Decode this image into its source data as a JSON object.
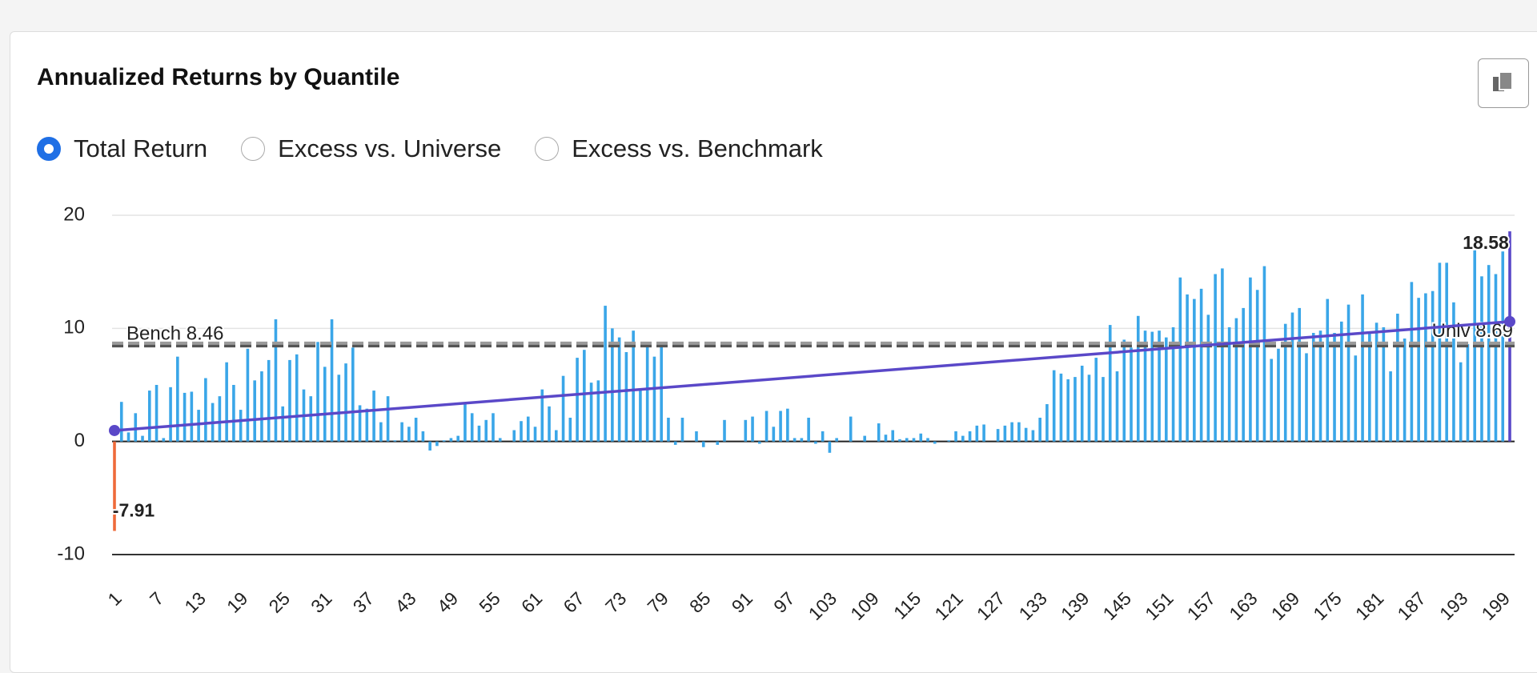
{
  "header": {
    "title": "Annualized Returns by Quantile"
  },
  "options": [
    "Total Return",
    "Excess vs. Universe",
    "Excess vs. Benchmark"
  ],
  "selected": 0,
  "chart_data": {
    "type": "bar",
    "categories": [
      "1",
      null,
      null,
      null,
      null,
      null,
      "7",
      null,
      null,
      null,
      null,
      null,
      "13",
      null,
      null,
      null,
      null,
      null,
      "19",
      null,
      null,
      null,
      null,
      null,
      "25",
      null,
      null,
      null,
      null,
      null,
      "31",
      null,
      null,
      null,
      null,
      null,
      "37",
      null,
      null,
      null,
      null,
      null,
      "43",
      null,
      null,
      null,
      null,
      null,
      "49",
      null,
      null,
      null,
      null,
      null,
      "55",
      null,
      null,
      null,
      null,
      null,
      "61",
      null,
      null,
      null,
      null,
      null,
      "67",
      null,
      null,
      null,
      null,
      null,
      "73",
      null,
      null,
      null,
      null,
      null,
      "79",
      null,
      null,
      null,
      null,
      null,
      "85",
      null,
      null,
      null,
      null,
      null,
      "91",
      null,
      null,
      null,
      null,
      null,
      "97",
      null,
      null,
      null,
      null,
      null,
      "103",
      null,
      null,
      null,
      null,
      null,
      "109",
      null,
      null,
      null,
      null,
      null,
      "115",
      null,
      null,
      null,
      null,
      null,
      "121",
      null,
      null,
      null,
      null,
      null,
      "127",
      null,
      null,
      null,
      null,
      null,
      "133",
      null,
      null,
      null,
      null,
      null,
      "139",
      null,
      null,
      null,
      null,
      null,
      "145",
      null,
      null,
      null,
      null,
      null,
      "151",
      null,
      null,
      null,
      null,
      null,
      "157",
      null,
      null,
      null,
      null,
      null,
      "163",
      null,
      null,
      null,
      null,
      null,
      "169",
      null,
      null,
      null,
      null,
      null,
      "175",
      null,
      null,
      null,
      null,
      null,
      "181",
      null,
      null,
      null,
      null,
      null,
      "187",
      null,
      null,
      null,
      null,
      null,
      "193",
      null,
      null,
      null,
      null,
      null,
      "199",
      null
    ],
    "values": [
      -7.91,
      3.5,
      0.8,
      2.5,
      0.5,
      4.5,
      5,
      0.3,
      4.8,
      7.5,
      4.3,
      4.4,
      2.8,
      5.6,
      3.4,
      4,
      7,
      5,
      2.8,
      8.2,
      5.4,
      6.2,
      7.2,
      10.8,
      3.1,
      7.2,
      7.7,
      4.6,
      4,
      8.8,
      6.6,
      10.8,
      5.9,
      6.9,
      8.3,
      3.2,
      2.9,
      4.5,
      1.7,
      4,
      0.1,
      1.7,
      1.3,
      2.1,
      0.9,
      -0.8,
      -0.4,
      0.1,
      0.3,
      0.5,
      3.3,
      2.5,
      1.4,
      1.9,
      2.5,
      0.3,
      0,
      1,
      1.8,
      2.2,
      1.3,
      4.6,
      3.1,
      1,
      5.8,
      2.1,
      7.4,
      8.1,
      5.2,
      5.4,
      12,
      10,
      9.2,
      7.9,
      9.8,
      4.7,
      8.7,
      7.5,
      8.5,
      2.1,
      -0.3,
      2.1,
      0,
      0.9,
      -0.5,
      0,
      -0.3,
      1.9,
      0,
      0,
      1.9,
      2.2,
      -0.2,
      2.7,
      1.3,
      2.7,
      2.9,
      0.3,
      0.3,
      2.1,
      -0.2,
      0.9,
      -1,
      0.3,
      0,
      2.2,
      0,
      0.5,
      0,
      1.6,
      0.6,
      1,
      0.2,
      0.3,
      0.3,
      0.7,
      0.3,
      -0.2,
      0,
      0.1,
      0.9,
      0.5,
      0.9,
      1.4,
      1.5,
      0,
      1.1,
      1.4,
      1.7,
      1.7,
      1.2,
      1,
      2.1,
      3.3,
      6.3,
      6,
      5.5,
      5.7,
      6.7,
      5.9,
      7.4,
      5.7,
      10.3,
      6.2,
      9,
      8.3,
      11.1,
      9.8,
      9.7,
      9.8,
      9.2,
      10.1,
      14.5,
      13,
      12.6,
      13.5,
      11.2,
      14.8,
      15.3,
      10.1,
      10.9,
      11.8,
      14.5,
      13.4,
      15.5,
      7.3,
      8.2,
      10.4,
      11.4,
      11.8,
      7.8,
      9.6,
      9.8,
      12.6,
      9.6,
      10.6,
      12.1,
      7.6,
      13,
      9.6,
      10.5,
      10.1,
      6.2,
      11.3,
      9.1,
      14.1,
      12.7,
      13.1,
      13.3,
      15.8,
      15.8,
      12.3,
      7,
      8.6,
      16.9,
      14.6,
      15.6,
      14.8,
      16.8,
      18.58
    ],
    "value_labels": [
      "-7.91",
      null,
      null,
      null,
      null,
      null,
      null,
      null,
      null,
      null,
      null,
      null,
      null,
      null,
      null,
      null,
      null,
      null,
      null,
      null,
      null,
      null,
      null,
      null,
      null,
      null,
      null,
      null,
      null,
      null,
      null,
      null,
      null,
      null,
      null,
      null,
      null,
      null,
      null,
      null,
      null,
      null,
      null,
      null,
      null,
      null,
      null,
      null,
      null,
      null,
      null,
      null,
      null,
      null,
      null,
      null,
      null,
      null,
      null,
      null,
      null,
      null,
      null,
      null,
      null,
      null,
      null,
      null,
      null,
      null,
      null,
      null,
      null,
      null,
      null,
      null,
      null,
      null,
      null,
      null,
      null,
      null,
      null,
      null,
      null,
      null,
      null,
      null,
      null,
      null,
      null,
      null,
      null,
      null,
      null,
      null,
      null,
      null,
      null,
      null,
      null,
      null,
      null,
      null,
      null,
      null,
      null,
      null,
      null,
      null,
      null,
      null,
      null,
      null,
      null,
      null,
      null,
      null,
      null,
      null,
      null,
      null,
      null,
      null,
      null,
      null,
      null,
      null,
      null,
      null,
      null,
      null,
      null,
      null,
      null,
      null,
      null,
      null,
      null,
      null,
      null,
      null,
      null,
      null,
      null,
      null,
      null,
      null,
      null,
      null,
      null,
      null,
      null,
      null,
      null,
      null,
      null,
      null,
      null,
      null,
      null,
      null,
      null,
      null,
      null,
      null,
      null,
      null,
      null,
      null,
      null,
      null,
      null,
      null,
      null,
      null,
      null,
      null,
      null,
      null,
      null,
      null,
      null,
      null,
      null,
      null,
      null,
      null,
      null,
      null,
      null,
      null,
      null,
      null,
      null,
      null,
      null,
      null,
      null,
      "18.58"
    ],
    "color": "#3aa6e8",
    "min_color": "#ee6a3a",
    "max_color": "#5a48c8",
    "ylim": [
      -10,
      20
    ],
    "yticks": [
      -10,
      0,
      10,
      20
    ],
    "grid": true,
    "reference_lines": [
      {
        "label": "Bench 8.46",
        "value": 8.46,
        "color": "#555555",
        "position": "left"
      },
      {
        "label": "Univ 8.69",
        "value": 8.69,
        "color": "#9a9a9a",
        "position": "right"
      }
    ],
    "trend": {
      "start": 0.97,
      "end": 10.6,
      "color": "#5a48c8"
    }
  }
}
